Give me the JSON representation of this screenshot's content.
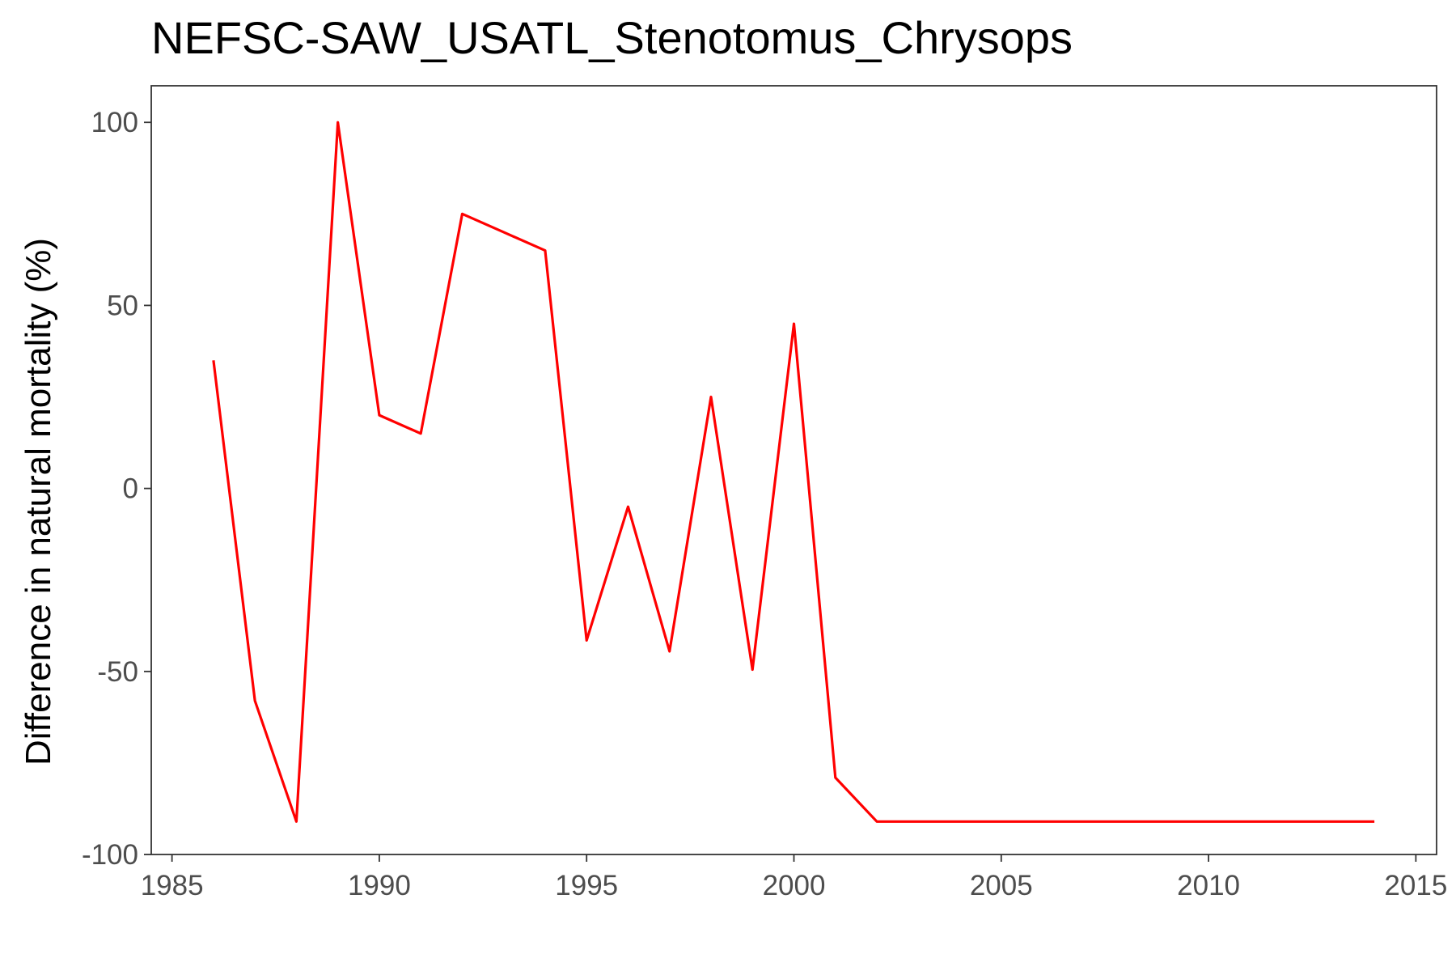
{
  "chart_data": {
    "type": "line",
    "title": "NEFSC-SAW_USATL_Stenotomus_Chrysops",
    "xlabel": "",
    "ylabel": "Difference in natural mortality (%)",
    "xlim": [
      1984.5,
      2015.5
    ],
    "ylim": [
      -100,
      110
    ],
    "xticks": [
      1985,
      1990,
      1995,
      2000,
      2005,
      2010,
      2015
    ],
    "xtick_labels": [
      "1985",
      "1990",
      "1995",
      "2000",
      "2005",
      "2010",
      "2015"
    ],
    "yticks": [
      -100,
      -50,
      0,
      50,
      100
    ],
    "ytick_labels": [
      "-100",
      "-50",
      "0",
      "50",
      "100"
    ],
    "grid": false,
    "legend": "none",
    "series": [
      {
        "color": "#ff0000",
        "x": [
          1986,
          1987,
          1988,
          1989,
          1990,
          1991,
          1992,
          1993,
          1994,
          1995,
          1996,
          1997,
          1998,
          1999,
          2000,
          2001,
          2002,
          2003,
          2004,
          2005,
          2006,
          2007,
          2008,
          2009,
          2010,
          2011,
          2012,
          2013,
          2014
        ],
        "y": [
          35,
          -58,
          -91,
          100,
          20,
          15,
          75,
          70,
          65,
          -41.5,
          -5,
          -44.5,
          25,
          -49.5,
          45,
          -79,
          -91,
          -91,
          -91,
          -91,
          -91,
          -91,
          -91,
          -91,
          -91,
          -91,
          -91,
          -91,
          -91
        ]
      }
    ]
  }
}
